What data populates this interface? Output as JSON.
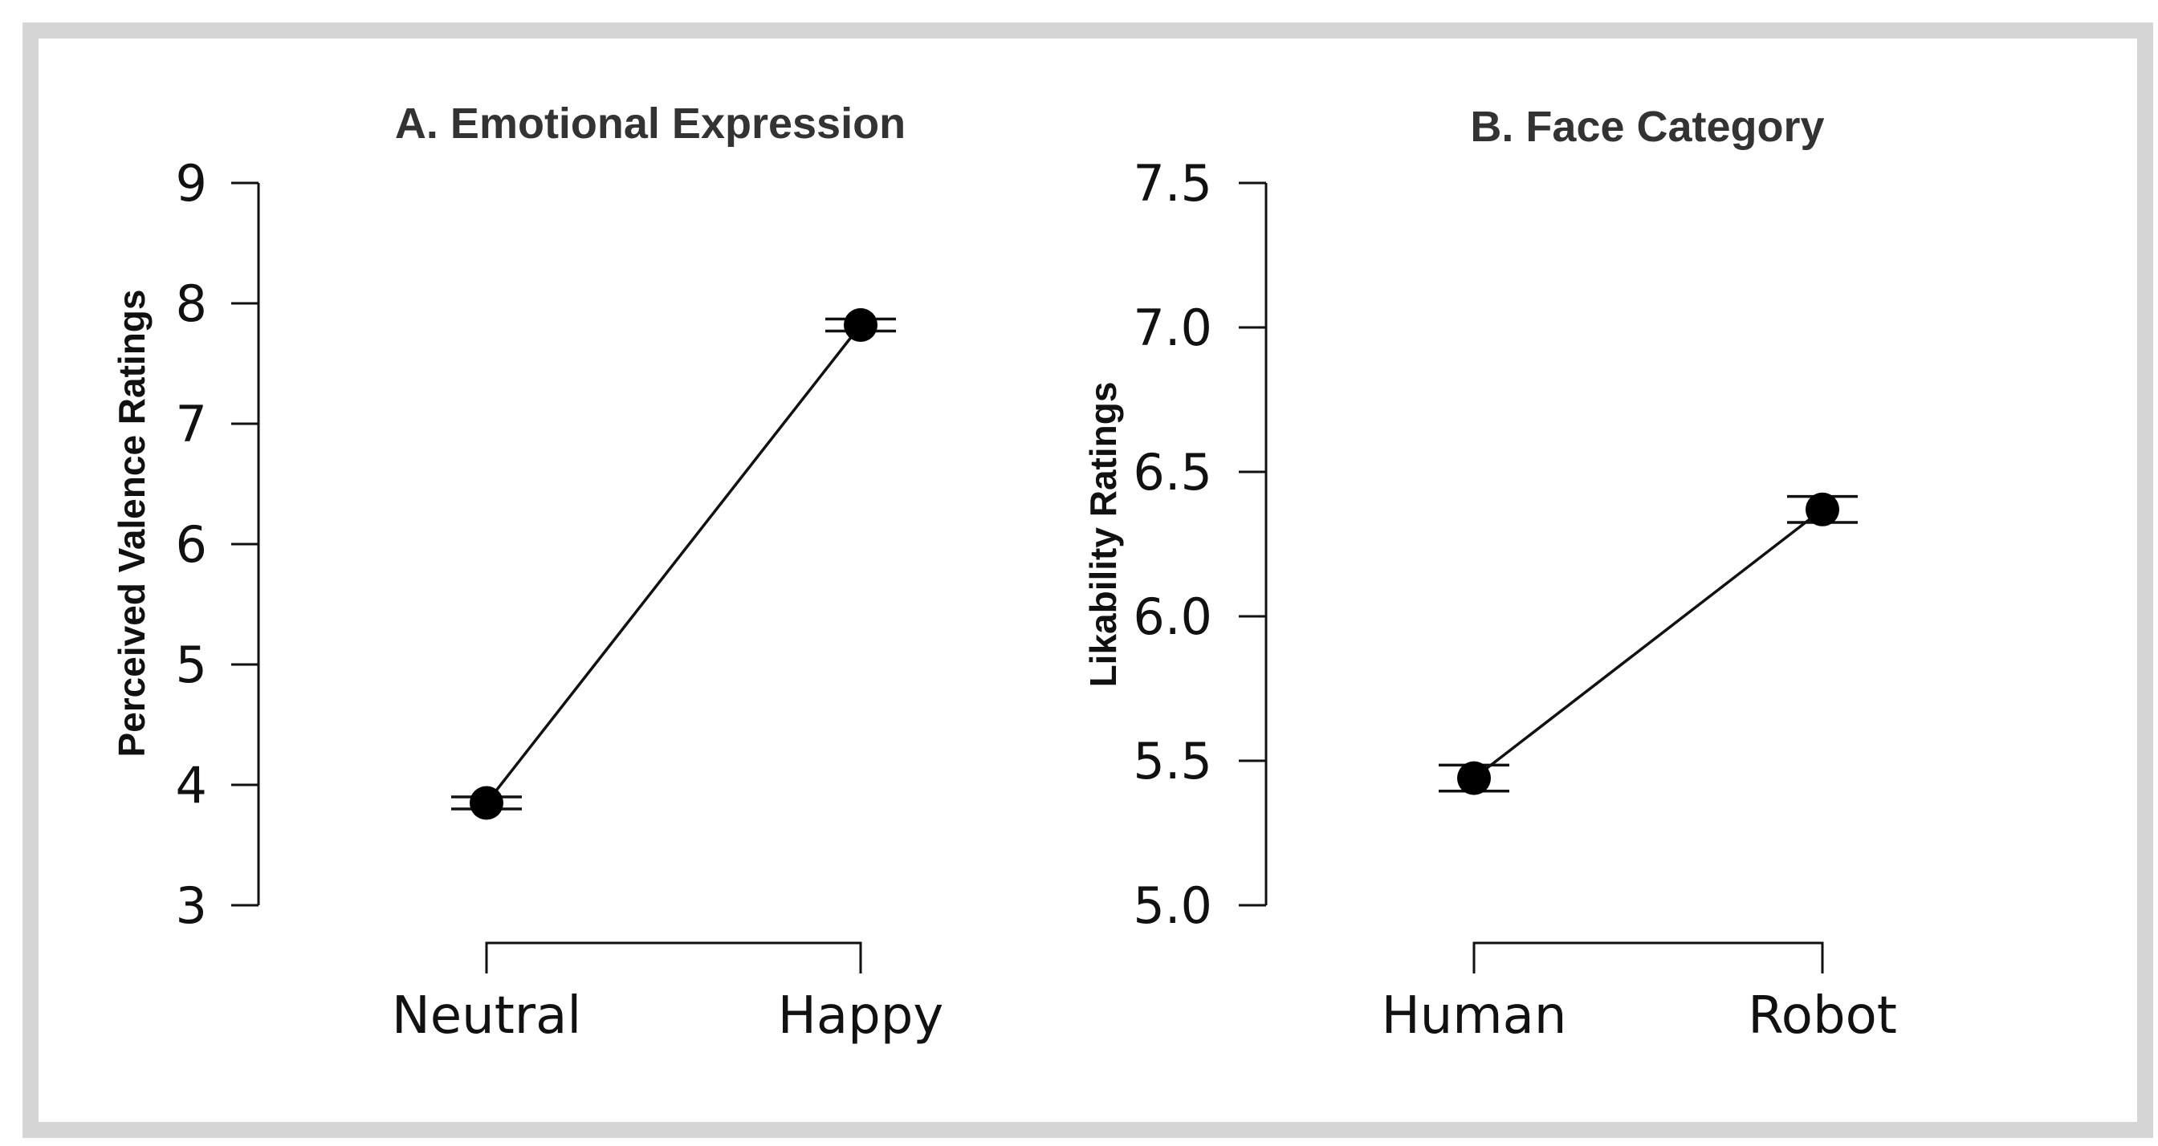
{
  "chart_data": [
    {
      "type": "line",
      "title": "A. Emotional Expression",
      "xlabel": "",
      "ylabel": "Perceived Valence Ratings",
      "categories": [
        "Neutral",
        "Happy"
      ],
      "values": [
        3.85,
        7.82
      ],
      "error": [
        0.05,
        0.05
      ],
      "ylim": [
        3,
        9
      ],
      "yticks": [
        "3",
        "4",
        "5",
        "6",
        "7",
        "8",
        "9"
      ],
      "ytick_values": [
        3,
        4,
        5,
        6,
        7,
        8,
        9
      ]
    },
    {
      "type": "line",
      "title": "B. Face Category",
      "xlabel": "",
      "ylabel": "Likability Ratings",
      "categories": [
        "Human",
        "Robot"
      ],
      "values": [
        5.44,
        6.37
      ],
      "error": [
        0.045,
        0.045
      ],
      "ylim": [
        5.0,
        7.5
      ],
      "yticks": [
        "5.0",
        "5.5",
        "6.0",
        "6.5",
        "7.0",
        "7.5"
      ],
      "ytick_values": [
        5.0,
        5.5,
        6.0,
        6.5,
        7.0,
        7.5
      ]
    }
  ]
}
